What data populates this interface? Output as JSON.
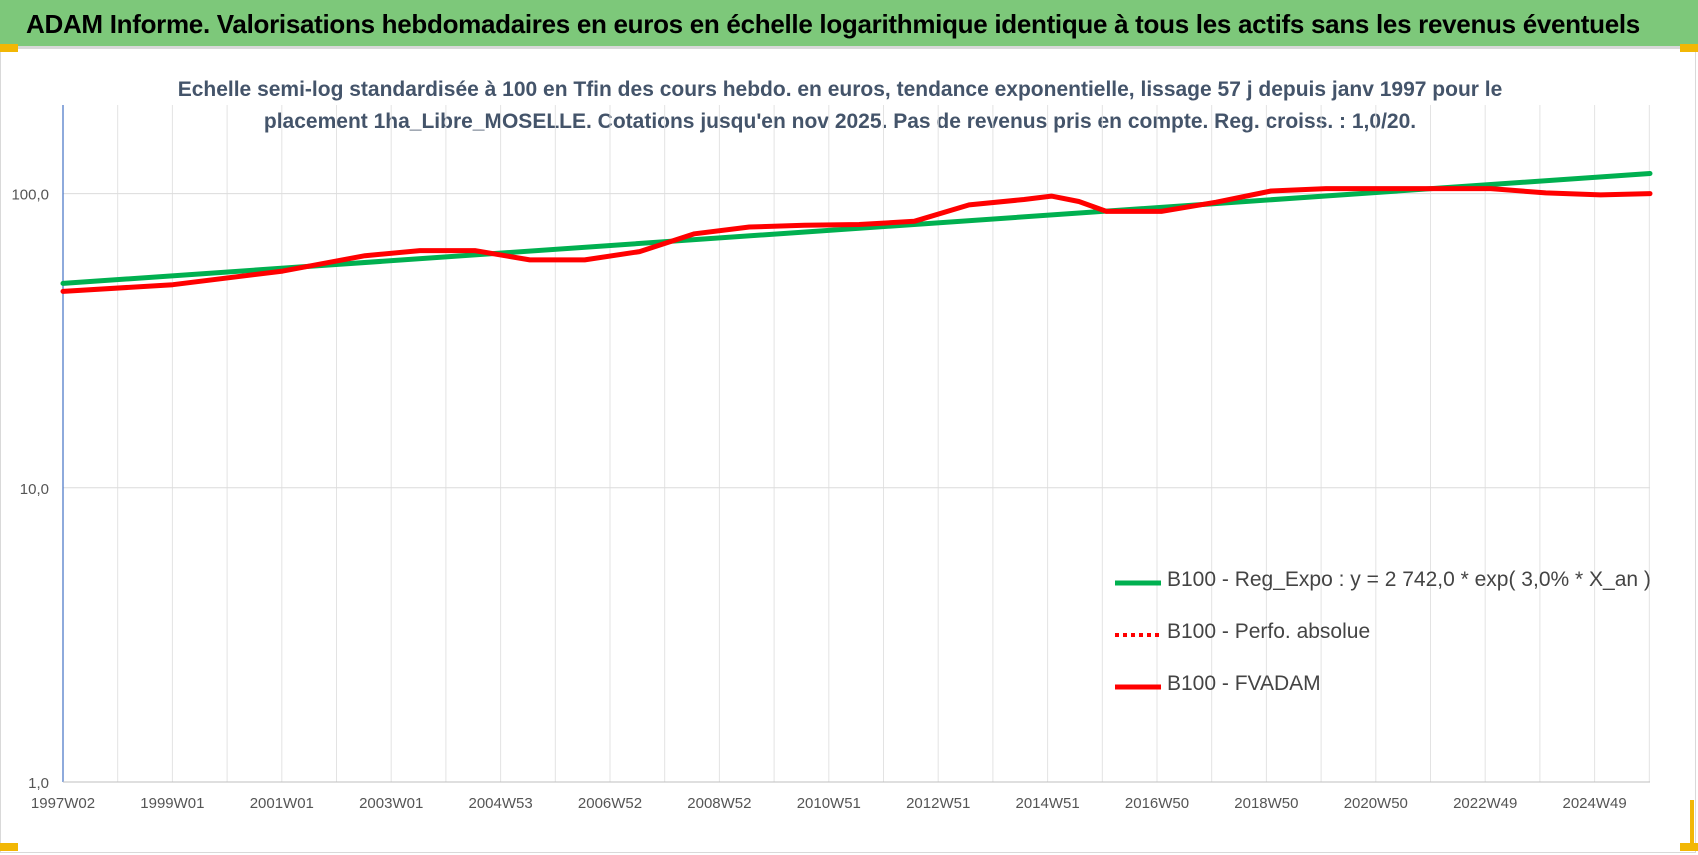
{
  "banner": {
    "title": "ADAM Informe. Valorisations hebdomadaires en euros en échelle logarithmique identique à tous les actifs sans les revenus éventuels"
  },
  "chart_data": {
    "type": "line",
    "title_line1": "Echelle semi-log standardisée à 100 en Tfin des cours hebdo. en euros, tendance exponentielle, lissage 57 j depuis janv 1997 pour le",
    "title_line2": "placement 1ha_Libre_MOSELLE. Cotations jusqu'en nov 2025. Pas de revenus pris en compte. Reg. croiss. : 1,0/20.",
    "xlabel": "",
    "ylabel": "",
    "y_scale": "log",
    "ylim": [
      1,
      200
    ],
    "y_ticks": [
      "1,0",
      "10,0",
      "100,0"
    ],
    "y_tick_values": [
      1,
      10,
      100
    ],
    "x_tick_labels": [
      "1997W02",
      "1999W01",
      "2001W01",
      "2003W01",
      "2004W53",
      "2006W52",
      "2008W52",
      "2010W51",
      "2012W51",
      "2014W51",
      "2016W50",
      "2018W50",
      "2020W50",
      "2022W49",
      "2024W49"
    ],
    "x_range": [
      1997.0,
      2025.9
    ],
    "grid": true,
    "legend_position": "lower-right",
    "series": [
      {
        "name": "B100 - Reg_Expo : y = 2 742,0 * exp( 3,0% *  X_an )",
        "color": "#00b050",
        "style": "solid",
        "x": [
          1997.0,
          2025.9
        ],
        "y": [
          49.5,
          117
        ]
      },
      {
        "name": "B100 - Perfo. absolue",
        "color": "#ff0000",
        "style": "dotted",
        "x": [],
        "y": []
      },
      {
        "name": "B100 - FVADAM",
        "color": "#ff0000",
        "style": "solid",
        "x": [
          1997.0,
          1999.0,
          2001.0,
          2002.5,
          2003.5,
          2004.5,
          2005.5,
          2006.5,
          2007.5,
          2008.5,
          2009.5,
          2010.5,
          2011.5,
          2012.5,
          2013.5,
          2014.5,
          2015.0,
          2015.5,
          2016.0,
          2017.0,
          2018.0,
          2019.0,
          2020.0,
          2021.0,
          2022.0,
          2023.0,
          2024.0,
          2025.0,
          2025.9
        ],
        "y": [
          46.5,
          49.0,
          54.5,
          61.5,
          64.0,
          64.0,
          59.5,
          59.5,
          63.5,
          73.0,
          77.0,
          78.0,
          78.5,
          80.5,
          91.5,
          95.5,
          98.0,
          94.0,
          87.0,
          87.0,
          93.5,
          102.0,
          104.0,
          104.0,
          104.0,
          104.0,
          100.5,
          99.0,
          100.0
        ]
      }
    ]
  }
}
